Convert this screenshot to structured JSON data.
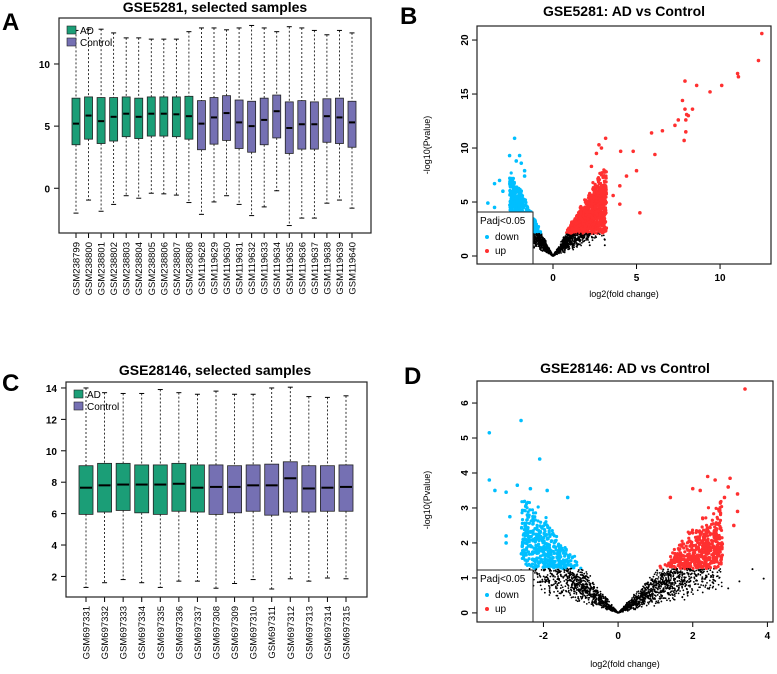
{
  "chart_data": [
    {
      "panel_label": "A",
      "type": "box",
      "title": "GSE5281, selected samples",
      "legend": [
        {
          "label": "AD",
          "color": "#1b9e77"
        },
        {
          "label": "Control",
          "color": "#7570b3"
        }
      ],
      "ylim": [
        -3.6,
        13.7
      ],
      "yticks": [
        0,
        5,
        10
      ],
      "stats_order": [
        "lower_whisker",
        "q1",
        "median",
        "q3",
        "upper_whisker"
      ],
      "samples": [
        {
          "name": "GSM238799",
          "group": "AD",
          "stats": [
            -2.0,
            3.5,
            5.2,
            7.25,
            12.7
          ]
        },
        {
          "name": "GSM238800",
          "group": "AD",
          "stats": [
            -0.95,
            3.95,
            5.85,
            7.35,
            12.8
          ]
        },
        {
          "name": "GSM238801",
          "group": "AD",
          "stats": [
            -1.85,
            3.6,
            5.4,
            7.3,
            12.8
          ]
        },
        {
          "name": "GSM238802",
          "group": "AD",
          "stats": [
            -1.3,
            3.8,
            5.75,
            7.3,
            12.5
          ]
        },
        {
          "name": "GSM238803",
          "group": "AD",
          "stats": [
            -0.6,
            4.15,
            6.0,
            7.35,
            12.1
          ]
        },
        {
          "name": "GSM238804",
          "group": "AD",
          "stats": [
            -0.8,
            4.0,
            5.75,
            7.25,
            12.1
          ]
        },
        {
          "name": "GSM238805",
          "group": "AD",
          "stats": [
            -0.4,
            4.2,
            6.0,
            7.35,
            12.0
          ]
        },
        {
          "name": "GSM238806",
          "group": "AD",
          "stats": [
            -0.45,
            4.2,
            6.0,
            7.35,
            12.0
          ]
        },
        {
          "name": "GSM238807",
          "group": "AD",
          "stats": [
            -0.55,
            4.15,
            5.95,
            7.35,
            12.0
          ]
        },
        {
          "name": "GSM238808",
          "group": "AD",
          "stats": [
            -1.15,
            3.95,
            5.8,
            7.4,
            12.6
          ]
        },
        {
          "name": "GSM119628",
          "group": "Control",
          "stats": [
            -2.1,
            3.1,
            5.2,
            7.05,
            12.9
          ]
        },
        {
          "name": "GSM119629",
          "group": "Control",
          "stats": [
            -1.1,
            3.55,
            5.7,
            7.3,
            12.9
          ]
        },
        {
          "name": "GSM119630",
          "group": "Control",
          "stats": [
            -0.6,
            3.85,
            6.05,
            7.45,
            12.75
          ]
        },
        {
          "name": "GSM119631",
          "group": "Control",
          "stats": [
            -1.3,
            3.2,
            5.3,
            7.1,
            12.9
          ]
        },
        {
          "name": "GSM119632",
          "group": "Control",
          "stats": [
            -2.2,
            2.9,
            5.0,
            7.0,
            13.1
          ]
        },
        {
          "name": "GSM119633",
          "group": "Control",
          "stats": [
            -1.5,
            3.5,
            5.5,
            7.25,
            12.9
          ]
        },
        {
          "name": "GSM119634",
          "group": "Control",
          "stats": [
            -0.2,
            4.05,
            6.2,
            7.5,
            12.6
          ]
        },
        {
          "name": "GSM119635",
          "group": "Control",
          "stats": [
            -3.0,
            2.8,
            4.85,
            6.95,
            13.0
          ]
        },
        {
          "name": "GSM119636",
          "group": "Control",
          "stats": [
            -2.4,
            3.15,
            5.15,
            7.05,
            12.9
          ]
        },
        {
          "name": "GSM119637",
          "group": "Control",
          "stats": [
            -2.4,
            3.15,
            5.15,
            6.95,
            12.7
          ]
        },
        {
          "name": "GSM119638",
          "group": "Control",
          "stats": [
            -1.2,
            3.7,
            5.8,
            7.2,
            12.35
          ]
        },
        {
          "name": "GSM119639",
          "group": "Control",
          "stats": [
            -0.95,
            3.6,
            5.7,
            7.25,
            12.7
          ]
        },
        {
          "name": "GSM119640",
          "group": "Control",
          "stats": [
            -1.6,
            3.3,
            5.3,
            7.0,
            12.5
          ]
        }
      ]
    },
    {
      "panel_label": "B",
      "type": "scatter",
      "title": "GSE5281: AD vs Control",
      "xlabel": "log2(fold change)",
      "ylabel": "-log10(Pvalue)",
      "xlim": [
        -4.55,
        13.05
      ],
      "ylim": [
        -0.74,
        21.3
      ],
      "xticks": [
        0,
        5,
        10
      ],
      "yticks": [
        0,
        5,
        10,
        15,
        20
      ],
      "padj_threshold_y": 2.1,
      "fold_change_threshold": 0.5,
      "colors": {
        "down": "#00bfff",
        "up": "#ff3030",
        "ns": "#000000"
      },
      "legend": {
        "title": "Padj<0.05",
        "items": [
          {
            "label": "down",
            "color": "#00bfff"
          },
          {
            "label": "up",
            "color": "#ff3030"
          }
        ],
        "position": "bottom-left"
      },
      "points": {
        "up": [
          [
            12.5,
            20.6
          ],
          [
            12.3,
            18.1
          ],
          [
            11.05,
            16.9
          ],
          [
            11.1,
            16.6
          ],
          [
            10.1,
            15.8
          ],
          [
            9.4,
            15.2
          ],
          [
            8.6,
            15.8
          ],
          [
            7.9,
            16.2
          ],
          [
            7.75,
            14.4
          ],
          [
            7.9,
            13.6
          ],
          [
            8.35,
            13.6
          ],
          [
            8.0,
            13.1
          ],
          [
            8.1,
            13.0
          ],
          [
            7.95,
            12.6
          ],
          [
            7.5,
            12.6
          ],
          [
            7.3,
            12.1
          ],
          [
            6.55,
            11.6
          ],
          [
            5.9,
            11.4
          ],
          [
            7.95,
            11.5
          ],
          [
            7.85,
            10.7
          ],
          [
            6.1,
            9.4
          ],
          [
            4.8,
            9.7
          ],
          [
            4.05,
            9.7
          ],
          [
            5.0,
            7.9
          ],
          [
            4.4,
            7.4
          ],
          [
            5.2,
            4.0
          ],
          [
            3.15,
            10.9
          ],
          [
            2.75,
            10.3
          ],
          [
            2.9,
            10.0
          ],
          [
            2.6,
            9.5
          ],
          [
            2.3,
            8.3
          ],
          [
            4.0,
            6.5
          ],
          [
            3.6,
            5.6
          ],
          [
            4.0,
            4.8
          ]
        ],
        "down": [
          [
            -2.3,
            10.9
          ],
          [
            -2.6,
            9.3
          ],
          [
            -2.0,
            9.3
          ],
          [
            -1.9,
            8.6
          ],
          [
            -2.2,
            8.8
          ],
          [
            -3.5,
            6.7
          ],
          [
            -3.2,
            7.0
          ],
          [
            -3.9,
            4.9
          ],
          [
            -3.5,
            4.5
          ],
          [
            -3.0,
            6.0
          ],
          [
            -1.7,
            7.9
          ],
          [
            -1.7,
            7.4
          ]
        ],
        "ns": [
          [
            3.1,
            1.5
          ],
          [
            3.1,
            1.0
          ],
          [
            2.2,
            1.0
          ]
        ]
      }
    },
    {
      "panel_label": "C",
      "type": "box",
      "title": "GSE28146, selected samples",
      "legend": [
        {
          "label": "AD",
          "color": "#1b9e77"
        },
        {
          "label": "Control",
          "color": "#7570b3"
        }
      ],
      "ylim": [
        0.69,
        14.38
      ],
      "yticks": [
        2,
        4,
        6,
        8,
        10,
        12,
        14
      ],
      "stats_order": [
        "lower_whisker",
        "q1",
        "median",
        "q3",
        "upper_whisker"
      ],
      "samples": [
        {
          "name": "GSM697331",
          "group": "AD",
          "stats": [
            1.3,
            5.95,
            7.65,
            9.05,
            14.0
          ]
        },
        {
          "name": "GSM697332",
          "group": "AD",
          "stats": [
            1.6,
            6.1,
            7.8,
            9.2,
            13.7
          ]
        },
        {
          "name": "GSM697333",
          "group": "AD",
          "stats": [
            1.8,
            6.2,
            7.85,
            9.2,
            13.65
          ]
        },
        {
          "name": "GSM697334",
          "group": "AD",
          "stats": [
            1.6,
            6.05,
            7.85,
            9.1,
            13.65
          ]
        },
        {
          "name": "GSM697335",
          "group": "AD",
          "stats": [
            1.3,
            5.95,
            7.85,
            9.1,
            13.9
          ]
        },
        {
          "name": "GSM697336",
          "group": "AD",
          "stats": [
            1.7,
            6.15,
            7.9,
            9.2,
            13.7
          ]
        },
        {
          "name": "GSM697337",
          "group": "AD",
          "stats": [
            1.7,
            6.1,
            7.65,
            9.1,
            13.6
          ]
        },
        {
          "name": "GSM697308",
          "group": "Control",
          "stats": [
            1.25,
            5.95,
            7.7,
            9.1,
            13.8
          ]
        },
        {
          "name": "GSM697309",
          "group": "Control",
          "stats": [
            1.55,
            6.05,
            7.7,
            9.05,
            13.6
          ]
        },
        {
          "name": "GSM697310",
          "group": "Control",
          "stats": [
            1.8,
            6.15,
            7.8,
            9.1,
            13.6
          ]
        },
        {
          "name": "GSM697311",
          "group": "Control",
          "stats": [
            1.2,
            5.9,
            7.8,
            9.15,
            14.0
          ]
        },
        {
          "name": "GSM697312",
          "group": "Control",
          "stats": [
            1.85,
            6.1,
            8.25,
            9.3,
            14.05
          ]
        },
        {
          "name": "GSM697313",
          "group": "Control",
          "stats": [
            1.7,
            6.1,
            7.6,
            9.05,
            13.45
          ]
        },
        {
          "name": "GSM697314",
          "group": "Control",
          "stats": [
            1.9,
            6.15,
            7.65,
            9.05,
            13.4
          ]
        },
        {
          "name": "GSM697315",
          "group": "Control",
          "stats": [
            1.85,
            6.15,
            7.7,
            9.1,
            13.5
          ]
        }
      ]
    },
    {
      "panel_label": "D",
      "type": "scatter",
      "title": "GSE28146: AD vs Control",
      "xlabel": "log2(fold change)",
      "ylabel": "-log10(Pvalue)",
      "xlim": [
        -3.78,
        4.15
      ],
      "ylim": [
        -0.26,
        6.63
      ],
      "xticks": [
        -2,
        0,
        2,
        4
      ],
      "yticks": [
        0,
        1,
        2,
        3,
        4,
        5,
        6
      ],
      "padj_threshold_y": 1.27,
      "fold_change_threshold": 0.58,
      "colors": {
        "down": "#00bfff",
        "up": "#ff3030",
        "ns": "#000000"
      },
      "legend": {
        "title": "Padj<0.05",
        "items": [
          {
            "label": "down",
            "color": "#00bfff"
          },
          {
            "label": "up",
            "color": "#ff3030"
          }
        ],
        "position": "bottom-left"
      },
      "points": {
        "up": [
          [
            3.4,
            6.4
          ],
          [
            2.4,
            3.9
          ],
          [
            2.6,
            3.8
          ],
          [
            3.0,
            3.85
          ],
          [
            2.95,
            3.6
          ],
          [
            3.2,
            3.4
          ],
          [
            3.2,
            2.9
          ],
          [
            3.1,
            2.5
          ],
          [
            2.25,
            1.3
          ],
          [
            1.4,
            3.3
          ],
          [
            2.0,
            3.55
          ],
          [
            2.2,
            3.5
          ],
          [
            2.85,
            3.3
          ]
        ],
        "down": [
          [
            -3.45,
            5.15
          ],
          [
            -2.6,
            5.5
          ],
          [
            -2.1,
            4.4
          ],
          [
            -3.45,
            3.8
          ],
          [
            -3.3,
            3.5
          ],
          [
            -2.7,
            3.65
          ],
          [
            -3.0,
            3.45
          ],
          [
            -2.9,
            2.75
          ],
          [
            -2.35,
            3.55
          ],
          [
            -1.9,
            3.5
          ],
          [
            -1.35,
            3.3
          ],
          [
            -3.0,
            2.2
          ],
          [
            -3.0,
            2.0
          ]
        ],
        "ns": [
          [
            3.6,
            1.25
          ],
          [
            3.9,
            0.98
          ],
          [
            3.25,
            0.9
          ],
          [
            2.95,
            0.7
          ],
          [
            2.55,
            0.95
          ],
          [
            2.4,
            0.7
          ],
          [
            2.25,
            0.9
          ]
        ]
      }
    }
  ]
}
